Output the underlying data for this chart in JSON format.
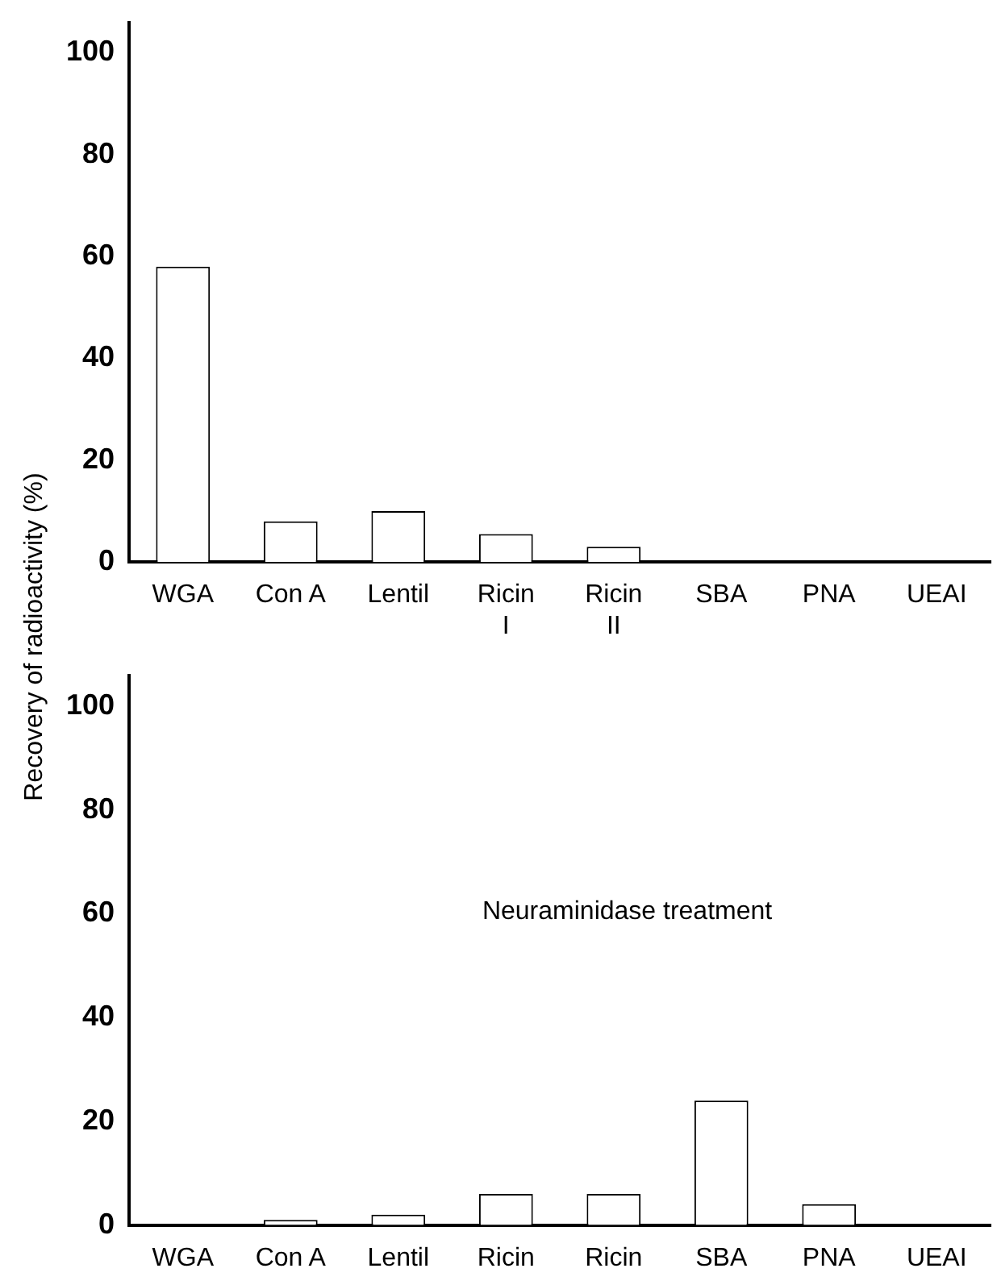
{
  "chart_data": [
    {
      "type": "bar",
      "ylabel": "Recovery of radioactivity (%)",
      "categories": [
        "WGA",
        "Con A",
        "Lentil",
        "Ricin\nI",
        "Ricin\nII",
        "SBA",
        "PNA",
        "UEAI"
      ],
      "values": [
        58,
        8,
        10,
        5.5,
        3,
        0,
        0,
        0
      ],
      "color": "#ffffff",
      "ylim": [
        0,
        106
      ],
      "yticks": [
        0,
        20,
        40,
        60,
        80,
        100
      ],
      "grid": false
    },
    {
      "type": "bar",
      "annotations": [
        "Neuraminidase treatment"
      ],
      "categories": [
        "WGA",
        "Con A",
        "Lentil",
        "Ricin",
        "Ricin",
        "SBA",
        "PNA",
        "UEAI"
      ],
      "values": [
        0,
        1,
        2,
        6,
        6,
        24,
        4,
        0
      ],
      "color": "#ffffff",
      "ylim": [
        0,
        106
      ],
      "yticks": [
        0,
        20,
        40,
        60,
        80,
        100
      ],
      "grid": false
    }
  ]
}
